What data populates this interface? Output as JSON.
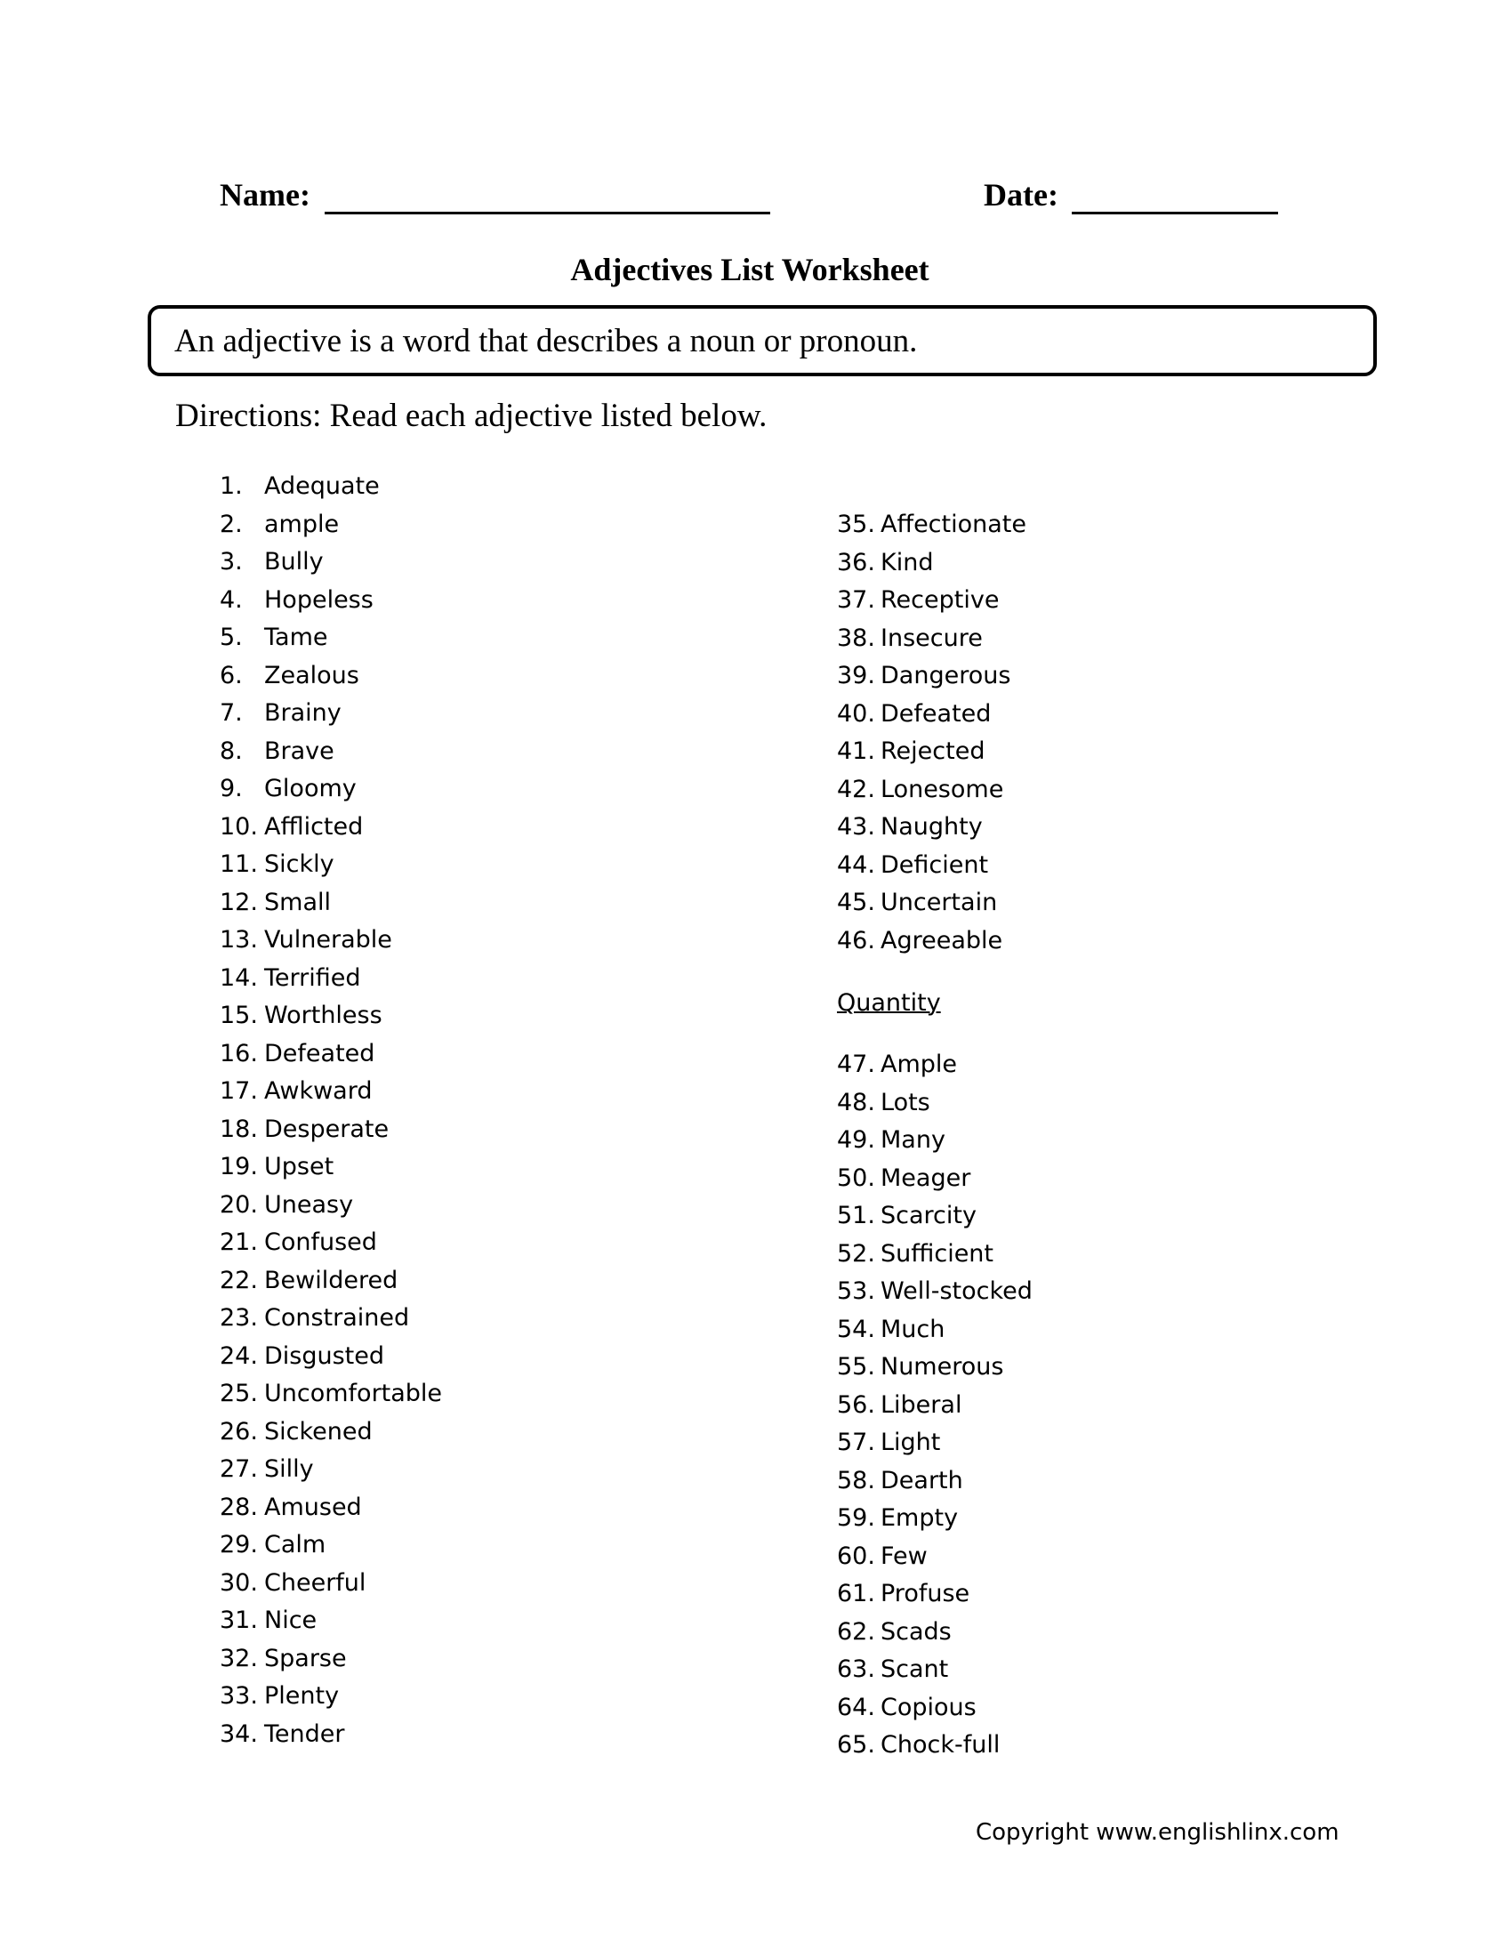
{
  "header": {
    "name_label": "Name:",
    "date_label": "Date:"
  },
  "title": "Adjectives List Worksheet",
  "definition": "An adjective is a word that describes a noun or pronoun.",
  "directions": "Directions: Read each adjective listed below.",
  "left_column": [
    {
      "num": "1.",
      "word": "Adequate"
    },
    {
      "num": "2.",
      "word": "ample"
    },
    {
      "num": "3.",
      "word": "Bully"
    },
    {
      "num": "4.",
      "word": "Hopeless"
    },
    {
      "num": "5.",
      "word": "Tame"
    },
    {
      "num": "6.",
      "word": "Zealous"
    },
    {
      "num": "7.",
      "word": "Brainy"
    },
    {
      "num": "8.",
      "word": "Brave"
    },
    {
      "num": "9.",
      "word": "Gloomy"
    },
    {
      "num": "10.",
      "word": "Afflicted"
    },
    {
      "num": "11.",
      "word": "Sickly"
    },
    {
      "num": "12.",
      "word": "Small"
    },
    {
      "num": "13.",
      "word": "Vulnerable"
    },
    {
      "num": "14.",
      "word": "Terrified"
    },
    {
      "num": "15.",
      "word": "Worthless"
    },
    {
      "num": "16.",
      "word": "Defeated"
    },
    {
      "num": "17.",
      "word": "Awkward"
    },
    {
      "num": "18.",
      "word": "Desperate"
    },
    {
      "num": "19.",
      "word": "Upset"
    },
    {
      "num": "20.",
      "word": "Uneasy"
    },
    {
      "num": "21.",
      "word": "Confused"
    },
    {
      "num": "22.",
      "word": "Bewildered"
    },
    {
      "num": "23.",
      "word": "Constrained"
    },
    {
      "num": "24.",
      "word": "Disgusted"
    },
    {
      "num": "25.",
      "word": "Uncomfortable"
    },
    {
      "num": "26.",
      "word": "Sickened"
    },
    {
      "num": "27.",
      "word": "Silly"
    },
    {
      "num": "28.",
      "word": "Amused"
    },
    {
      "num": "29.",
      "word": "Calm"
    },
    {
      "num": "30.",
      "word": "Cheerful"
    },
    {
      "num": "31.",
      "word": "Nice"
    },
    {
      "num": "32.",
      "word": "Sparse"
    },
    {
      "num": "33.",
      "word": "Plenty"
    },
    {
      "num": "34.",
      "word": "Tender"
    }
  ],
  "right_column_top": [
    {
      "num": "35.",
      "word": "Affectionate"
    },
    {
      "num": "36.",
      "word": "Kind"
    },
    {
      "num": "37.",
      "word": "Receptive"
    },
    {
      "num": "38.",
      "word": "Insecure"
    },
    {
      "num": "39.",
      "word": "Dangerous"
    },
    {
      "num": "40.",
      "word": "Defeated"
    },
    {
      "num": "41.",
      "word": "Rejected"
    },
    {
      "num": "42.",
      "word": "Lonesome"
    },
    {
      "num": "43.",
      "word": "Naughty"
    },
    {
      "num": "44.",
      "word": "Deficient"
    },
    {
      "num": "45.",
      "word": "Uncertain"
    },
    {
      "num": "46.",
      "word": "Agreeable"
    }
  ],
  "quantity_heading": "Quantity",
  "right_column_bottom": [
    {
      "num": "47.",
      "word": "Ample"
    },
    {
      "num": "48.",
      "word": "Lots"
    },
    {
      "num": "49.",
      "word": "Many"
    },
    {
      "num": "50.",
      "word": "Meager"
    },
    {
      "num": "51.",
      "word": "Scarcity"
    },
    {
      "num": "52.",
      "word": "Sufficient"
    },
    {
      "num": "53.",
      "word": "Well-stocked"
    },
    {
      "num": "54.",
      "word": "Much"
    },
    {
      "num": "55.",
      "word": "Numerous"
    },
    {
      "num": "56.",
      "word": "Liberal"
    },
    {
      "num": "57.",
      "word": "Light"
    },
    {
      "num": "58.",
      "word": "Dearth"
    },
    {
      "num": "59.",
      "word": "Empty"
    },
    {
      "num": "60.",
      "word": "Few"
    },
    {
      "num": "61.",
      "word": "Profuse"
    },
    {
      "num": "62.",
      "word": "Scads"
    },
    {
      "num": "63.",
      "word": "Scant"
    },
    {
      "num": "64.",
      "word": "Copious"
    },
    {
      "num": "65.",
      "word": "Chock-full"
    }
  ],
  "copyright": "Copyright www.englishlinx.com"
}
